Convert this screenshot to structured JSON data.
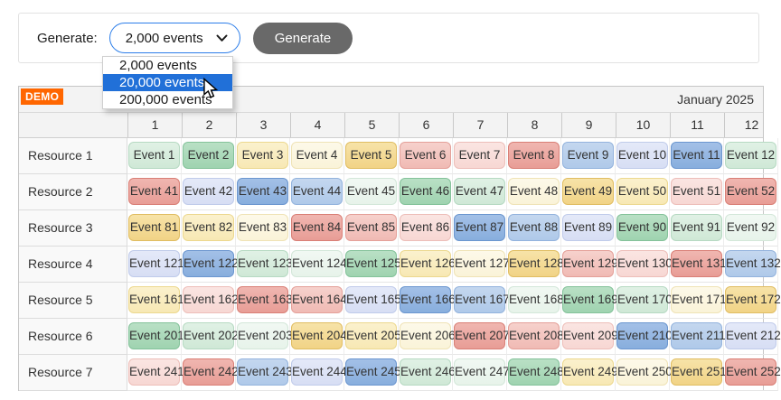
{
  "toolbar": {
    "label": "Generate:",
    "select_value": "2,000 events",
    "button_label": "Generate",
    "dropdown_options": [
      "2,000 events",
      "20,000 events",
      "200,000 events"
    ],
    "dropdown_selected_index": 1
  },
  "demo_badge_label": "DEMO",
  "ui_colors": {
    "select_border_blue": "#2b7de9",
    "dropdown_highlight_blue": "#2170d8",
    "button_gray": "#696969",
    "demo_orange": "#ff6600",
    "header_bg": "#f3f3f3"
  },
  "scheduler": {
    "month_label": "January 2025",
    "columns": [
      "1",
      "2",
      "3",
      "4",
      "5",
      "6",
      "7",
      "8",
      "9",
      "10",
      "11",
      "12"
    ],
    "palette": {
      "green": {
        "bg": "#9fd3b0",
        "border": "#84c29a",
        "top": "#b9e0c5"
      },
      "green-light": {
        "bg": "#cfe8d6",
        "border": "#b6d9c2",
        "top": "#e0f1e5"
      },
      "green-pale": {
        "bg": "#e7f3ea",
        "border": "#d3e7d9",
        "top": "#f1f8f3"
      },
      "gold": {
        "bg": "#f1d386",
        "border": "#e0bd62",
        "top": "#f7e3a8"
      },
      "yellow-light": {
        "bg": "#f7e8b4",
        "border": "#ecd88f",
        "top": "#fbf1cd"
      },
      "cream": {
        "bg": "#faf3d8",
        "border": "#efe3b6",
        "top": "#fdf9e9"
      },
      "red": {
        "bg": "#e89d96",
        "border": "#d97f76",
        "top": "#f0b6b0"
      },
      "pink": {
        "bg": "#f0bab4",
        "border": "#e4a099",
        "top": "#f6d1cc"
      },
      "pink-light": {
        "bg": "#f7d7d3",
        "border": "#edbeb9",
        "top": "#fae5e2"
      },
      "blue": {
        "bg": "#88aedd",
        "border": "#6b96cf",
        "top": "#a3c0e7"
      },
      "blue-light": {
        "bg": "#afc9e9",
        "border": "#93b3dd",
        "top": "#c4d7ef"
      },
      "lavender": {
        "bg": "#d7def4",
        "border": "#c0cbea",
        "top": "#e4e9f8"
      }
    },
    "rows": [
      {
        "resource": "Resource 1",
        "events": [
          {
            "label": "Event 1",
            "color": "green-light"
          },
          {
            "label": "Event 2",
            "color": "green"
          },
          {
            "label": "Event 3",
            "color": "yellow-light"
          },
          {
            "label": "Event 4",
            "color": "cream"
          },
          {
            "label": "Event 5",
            "color": "gold"
          },
          {
            "label": "Event 6",
            "color": "pink"
          },
          {
            "label": "Event 7",
            "color": "pink-light"
          },
          {
            "label": "Event 8",
            "color": "red"
          },
          {
            "label": "Event 9",
            "color": "blue-light"
          },
          {
            "label": "Event 10",
            "color": "lavender"
          },
          {
            "label": "Event 11",
            "color": "blue"
          },
          {
            "label": "Event 12",
            "color": "green-light"
          }
        ]
      },
      {
        "resource": "Resource 2",
        "events": [
          {
            "label": "Event 41",
            "color": "red"
          },
          {
            "label": "Event 42",
            "color": "lavender"
          },
          {
            "label": "Event 43",
            "color": "blue"
          },
          {
            "label": "Event 44",
            "color": "blue-light"
          },
          {
            "label": "Event 45",
            "color": "green-pale"
          },
          {
            "label": "Event 46",
            "color": "green"
          },
          {
            "label": "Event 47",
            "color": "green-light"
          },
          {
            "label": "Event 48",
            "color": "cream"
          },
          {
            "label": "Event 49",
            "color": "gold"
          },
          {
            "label": "Event 50",
            "color": "yellow-light"
          },
          {
            "label": "Event 51",
            "color": "pink-light"
          },
          {
            "label": "Event 52",
            "color": "red"
          }
        ]
      },
      {
        "resource": "Resource 3",
        "events": [
          {
            "label": "Event 81",
            "color": "gold"
          },
          {
            "label": "Event 82",
            "color": "yellow-light"
          },
          {
            "label": "Event 83",
            "color": "cream"
          },
          {
            "label": "Event 84",
            "color": "red"
          },
          {
            "label": "Event 85",
            "color": "pink"
          },
          {
            "label": "Event 86",
            "color": "pink-light"
          },
          {
            "label": "Event 87",
            "color": "blue"
          },
          {
            "label": "Event 88",
            "color": "blue-light"
          },
          {
            "label": "Event 89",
            "color": "lavender"
          },
          {
            "label": "Event 90",
            "color": "green"
          },
          {
            "label": "Event 91",
            "color": "green-light"
          },
          {
            "label": "Event 92",
            "color": "green-pale"
          }
        ]
      },
      {
        "resource": "Resource 4",
        "events": [
          {
            "label": "Event 121",
            "color": "lavender"
          },
          {
            "label": "Event 122",
            "color": "blue"
          },
          {
            "label": "Event 123",
            "color": "green-light"
          },
          {
            "label": "Event 124",
            "color": "green-pale"
          },
          {
            "label": "Event 125",
            "color": "green"
          },
          {
            "label": "Event 126",
            "color": "yellow-light"
          },
          {
            "label": "Event 127",
            "color": "cream"
          },
          {
            "label": "Event 128",
            "color": "gold"
          },
          {
            "label": "Event 129",
            "color": "pink"
          },
          {
            "label": "Event 130",
            "color": "pink-light"
          },
          {
            "label": "Event 131",
            "color": "red"
          },
          {
            "label": "Event 132",
            "color": "blue-light"
          }
        ]
      },
      {
        "resource": "Resource 5",
        "events": [
          {
            "label": "Event 161",
            "color": "yellow-light"
          },
          {
            "label": "Event 162",
            "color": "pink-light"
          },
          {
            "label": "Event 163",
            "color": "red"
          },
          {
            "label": "Event 164",
            "color": "pink"
          },
          {
            "label": "Event 165",
            "color": "lavender"
          },
          {
            "label": "Event 166",
            "color": "blue"
          },
          {
            "label": "Event 167",
            "color": "blue-light"
          },
          {
            "label": "Event 168",
            "color": "green-pale"
          },
          {
            "label": "Event 169",
            "color": "green"
          },
          {
            "label": "Event 170",
            "color": "green-light"
          },
          {
            "label": "Event 171",
            "color": "cream"
          },
          {
            "label": "Event 172",
            "color": "gold"
          }
        ]
      },
      {
        "resource": "Resource 6",
        "events": [
          {
            "label": "Event 201",
            "color": "green"
          },
          {
            "label": "Event 202",
            "color": "green-light"
          },
          {
            "label": "Event 203",
            "color": "green-pale"
          },
          {
            "label": "Event 204",
            "color": "gold"
          },
          {
            "label": "Event 205",
            "color": "yellow-light"
          },
          {
            "label": "Event 206",
            "color": "cream"
          },
          {
            "label": "Event 207",
            "color": "red"
          },
          {
            "label": "Event 208",
            "color": "pink"
          },
          {
            "label": "Event 209",
            "color": "pink-light"
          },
          {
            "label": "Event 210",
            "color": "blue"
          },
          {
            "label": "Event 211",
            "color": "blue-light"
          },
          {
            "label": "Event 212",
            "color": "lavender"
          }
        ]
      },
      {
        "resource": "Resource 7",
        "events": [
          {
            "label": "Event 241",
            "color": "pink-light"
          },
          {
            "label": "Event 242",
            "color": "red"
          },
          {
            "label": "Event 243",
            "color": "blue-light"
          },
          {
            "label": "Event 244",
            "color": "lavender"
          },
          {
            "label": "Event 245",
            "color": "blue"
          },
          {
            "label": "Event 246",
            "color": "green-light"
          },
          {
            "label": "Event 247",
            "color": "green-pale"
          },
          {
            "label": "Event 248",
            "color": "green"
          },
          {
            "label": "Event 249",
            "color": "yellow-light"
          },
          {
            "label": "Event 250",
            "color": "cream"
          },
          {
            "label": "Event 251",
            "color": "gold"
          },
          {
            "label": "Event 252",
            "color": "red"
          }
        ]
      }
    ]
  }
}
